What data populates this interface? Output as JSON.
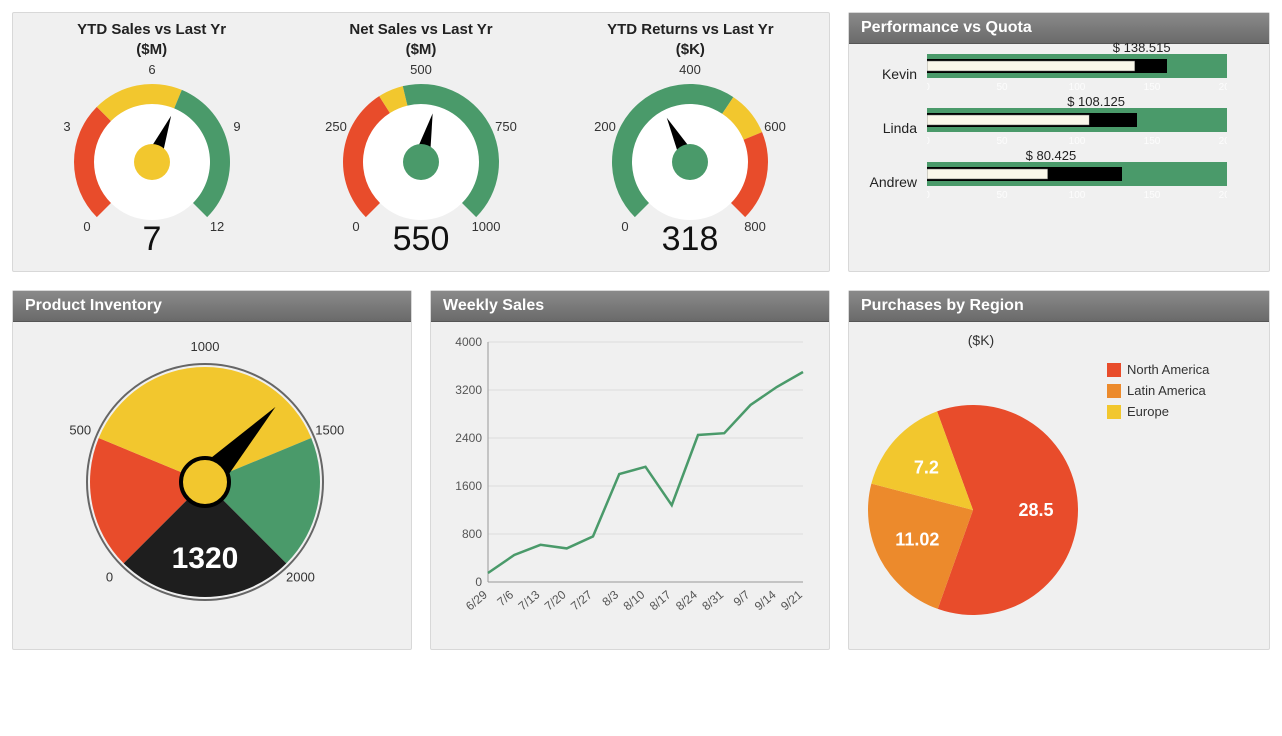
{
  "colors": {
    "panel_bg": "#f0f0f0",
    "header_grad_top": "#8a8a8a",
    "header_grad_bot": "#6a6a6a"
  },
  "gauges": [
    {
      "title1": "YTD Sales vs Last Yr",
      "title2": "($M)",
      "value": 7,
      "min": 0,
      "max": 12,
      "ticks": [
        0,
        3,
        6,
        9,
        12
      ],
      "segments": [
        {
          "from": 0,
          "to": 4,
          "color": "#e84c2b"
        },
        {
          "from": 4,
          "to": 7,
          "color": "#f2c72e"
        },
        {
          "from": 7,
          "to": 12,
          "color": "#4a9a6a"
        }
      ],
      "hub_color": "#f2c72e"
    },
    {
      "title1": "Net Sales vs Last Yr",
      "title2": "($M)",
      "value": 550,
      "min": 0,
      "max": 1000,
      "ticks": [
        0,
        250,
        500,
        750,
        1000
      ],
      "segments": [
        {
          "from": 0,
          "to": 380,
          "color": "#e84c2b"
        },
        {
          "from": 380,
          "to": 450,
          "color": "#f2c72e"
        },
        {
          "from": 450,
          "to": 1000,
          "color": "#4a9a6a"
        }
      ],
      "hub_color": "#4a9a6a"
    },
    {
      "title1": "YTD Returns vs Last Yr",
      "title2": "($K)",
      "value": 318,
      "min": 0,
      "max": 800,
      "ticks": [
        0,
        200,
        400,
        600,
        800
      ],
      "segments": [
        {
          "from": 0,
          "to": 500,
          "color": "#4a9a6a"
        },
        {
          "from": 500,
          "to": 600,
          "color": "#f2c72e"
        },
        {
          "from": 600,
          "to": 800,
          "color": "#e84c2b"
        }
      ],
      "hub_color": "#4a9a6a"
    }
  ],
  "quota": {
    "title": "Performance vs Quota",
    "scale_max": 200,
    "ticks": [
      0,
      50,
      100,
      150,
      200
    ],
    "background_color": "#4a9a6a",
    "bar_fill": "#faf7ea",
    "marker_color": "#000000",
    "rows": [
      {
        "name": "Kevin",
        "value": 138.515,
        "display": "$ 138.515",
        "target": 160
      },
      {
        "name": "Linda",
        "value": 108.125,
        "display": "$ 108.125",
        "target": 140
      },
      {
        "name": "Andrew",
        "value": 80.425,
        "display": "$ 80.425",
        "target": 130
      }
    ]
  },
  "inventory": {
    "title": "Product Inventory",
    "value": 1320,
    "min": 0,
    "max": 2000,
    "ticks": [
      0,
      500,
      1000,
      1500,
      2000
    ],
    "segments": [
      {
        "from": 0,
        "to": 500,
        "color": "#e84c2b"
      },
      {
        "from": 500,
        "to": 1500,
        "color": "#f2c72e"
      },
      {
        "from": 1500,
        "to": 2000,
        "color": "#4a9a6a"
      }
    ],
    "bottom_color": "#1e1e1e",
    "hub_color": "#f2c72e"
  },
  "weekly": {
    "title": "Weekly Sales",
    "y_min": 0,
    "y_max": 4000,
    "y_step": 800,
    "line_color": "#4a9a6a",
    "grid_color": "#dcdcdc",
    "axis_color": "#999999",
    "x_labels": [
      "6/29",
      "7/6",
      "7/13",
      "7/20",
      "7/27",
      "8/3",
      "8/10",
      "8/17",
      "8/24",
      "8/31",
      "9/7",
      "9/14",
      "9/21"
    ],
    "values": [
      150,
      450,
      620,
      560,
      760,
      1800,
      1920,
      1280,
      2450,
      2480,
      2950,
      3250,
      3500
    ]
  },
  "region": {
    "title": "Purchases by Region",
    "subtitle": "($K)",
    "slices": [
      {
        "label": "North America",
        "value": 28.5,
        "color": "#e84c2b"
      },
      {
        "label": "Latin America",
        "value": 11.02,
        "color": "#ec8a2c"
      },
      {
        "label": "Europe",
        "value": 7.2,
        "color": "#f2c72e"
      }
    ]
  }
}
